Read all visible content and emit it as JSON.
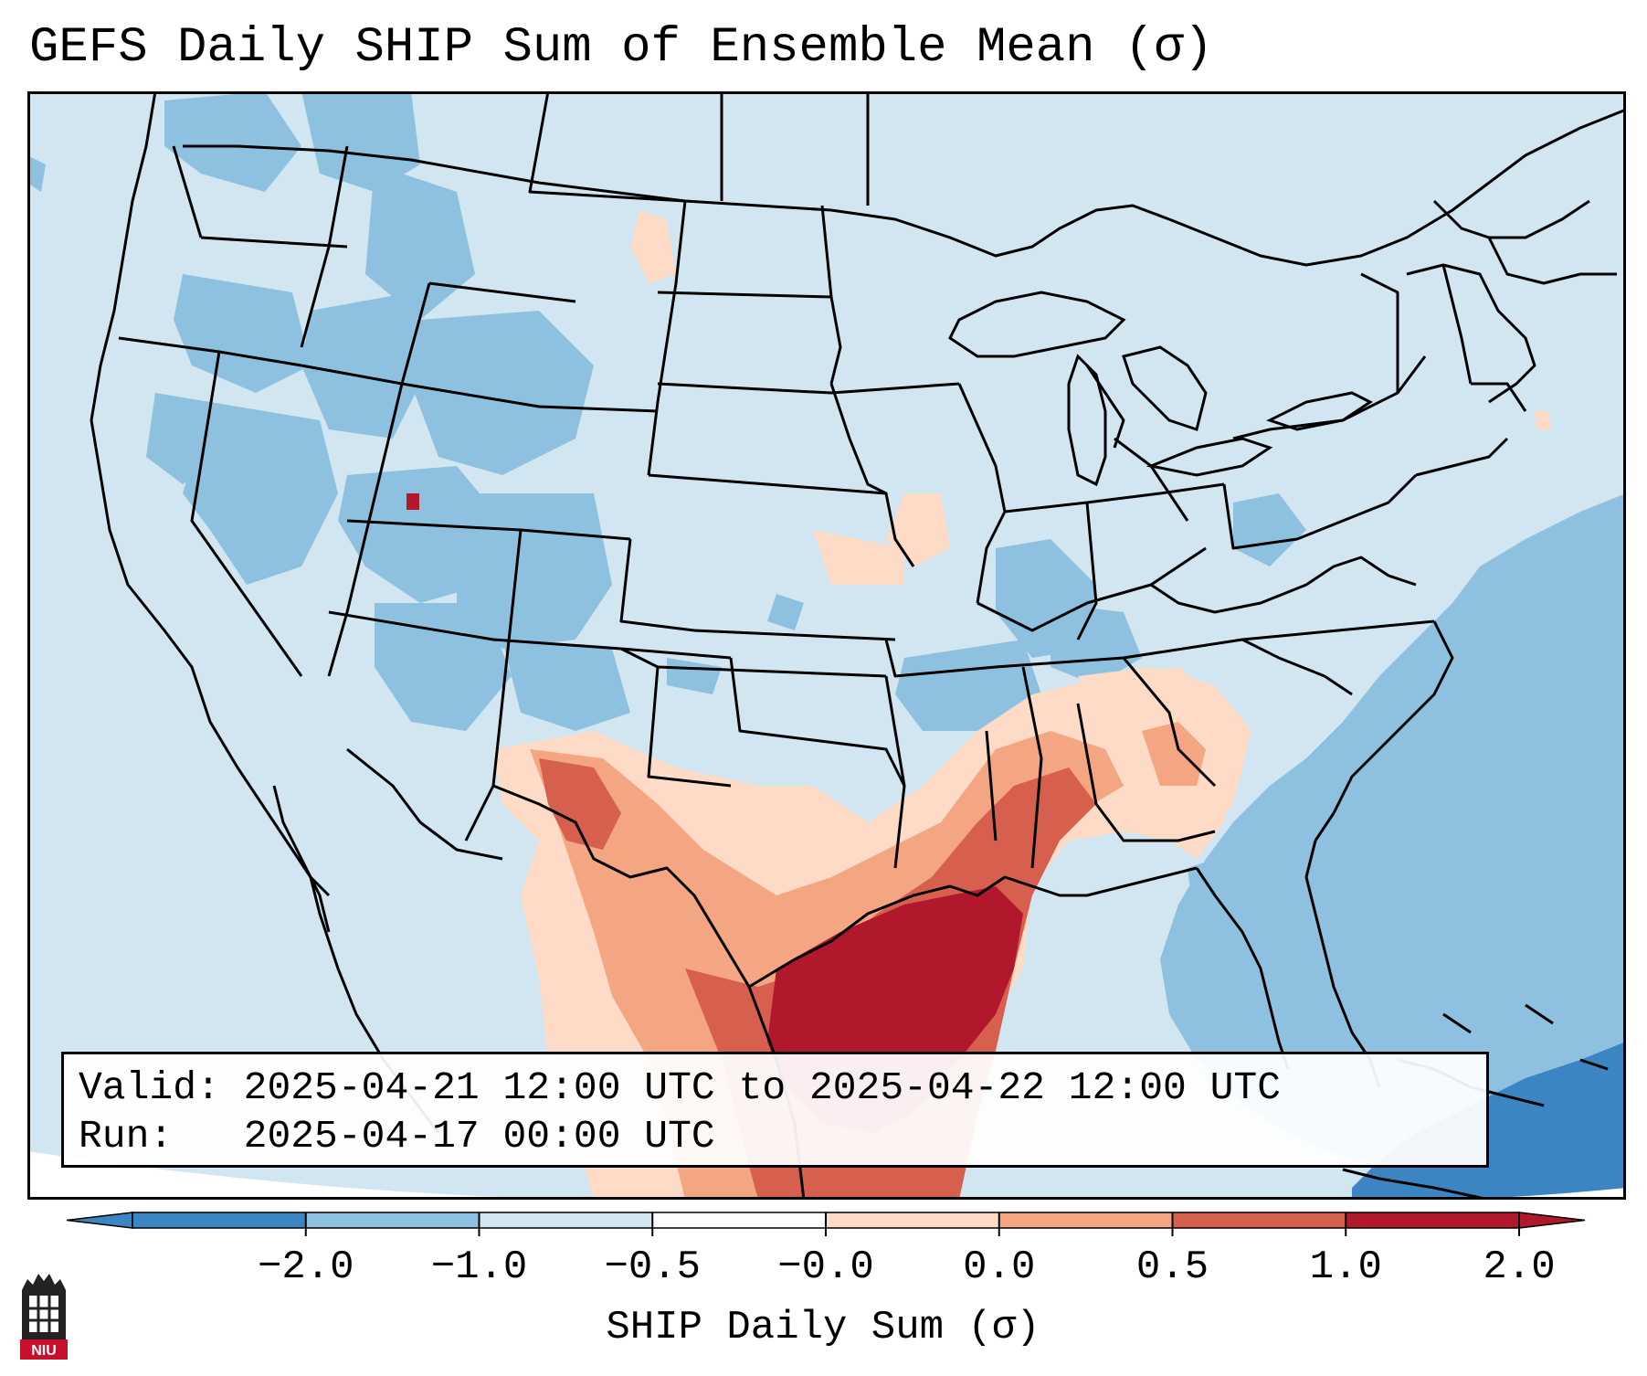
{
  "title": "GEFS Daily SHIP Sum of Ensemble Mean (σ)",
  "info": {
    "valid_label": "Valid:",
    "valid_value": "2025-04-21 12:00 UTC to 2025-04-22 12:00 UTC",
    "run_label": "Run:",
    "run_value": "2025-04-17 00:00 UTC"
  },
  "colorbar": {
    "label": "SHIP Daily Sum (σ)",
    "tick_labels": [
      "−2.0",
      "−1.0",
      "−0.5",
      "−0.0",
      "0.0",
      "0.5",
      "1.0",
      "2.0"
    ],
    "colors": [
      "#3b86c2",
      "#8ec1df",
      "#d2e6f1",
      "#fbfdff",
      "#fddbc7",
      "#f4a582",
      "#d6604d",
      "#b2182b"
    ]
  },
  "map_colors": {
    "background": "#d2e6f1",
    "light_blue": "#8ec1df",
    "mid_blue": "#3b86c2",
    "light_red": "#fddbc7",
    "mid_red": "#f4a582",
    "red": "#d6604d",
    "dark_red": "#b2182b",
    "borders": "#000000"
  },
  "logo": {
    "name": "niu-logo",
    "text": "NIU"
  }
}
